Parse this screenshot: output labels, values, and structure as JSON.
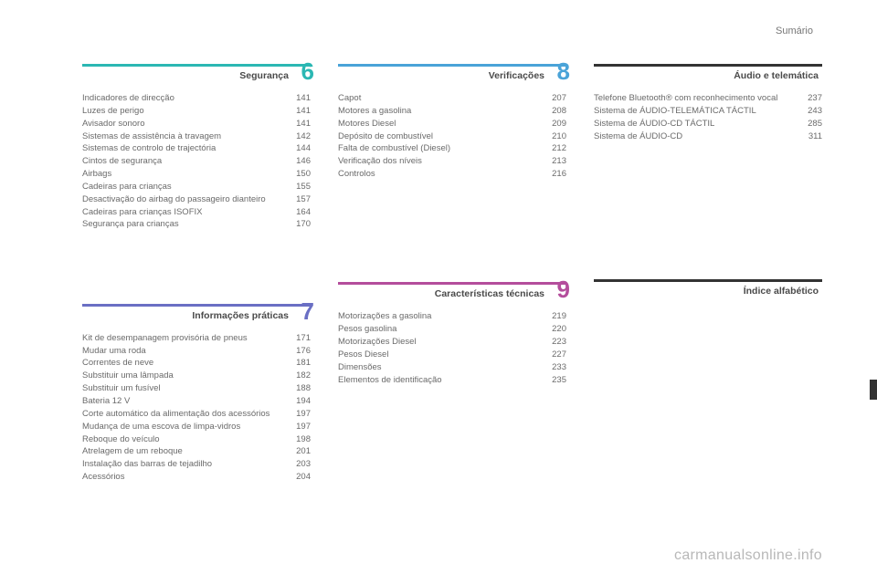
{
  "header": {
    "label": "Sumário"
  },
  "watermark": "carmanualsonline.info",
  "left": {
    "sec6": {
      "num": "6",
      "title": "Segurança",
      "border_color": "#2bb7b3",
      "num_color": "#2bb7b3",
      "items": [
        {
          "label": "Indicadores de direcção",
          "page": "141"
        },
        {
          "label": "Luzes de perigo",
          "page": "141"
        },
        {
          "label": "Avisador sonoro",
          "page": "141"
        },
        {
          "label": "Sistemas de assistência à travagem",
          "page": "142"
        },
        {
          "label": "Sistemas de controlo de trajectória",
          "page": "144"
        },
        {
          "label": "Cintos de segurança",
          "page": "146"
        },
        {
          "label": "Airbags",
          "page": "150"
        },
        {
          "label": "Cadeiras para crianças",
          "page": "155"
        },
        {
          "label": "Desactivação do airbag do passageiro dianteiro",
          "page": "157"
        },
        {
          "label": "Cadeiras para crianças ISOFIX",
          "page": "164"
        },
        {
          "label": "Segurança para crianças",
          "page": "170"
        }
      ]
    },
    "sec7": {
      "num": "7",
      "title": "Informações práticas",
      "border_color": "#6a6fc4",
      "num_color": "#6a6fc4",
      "items": [
        {
          "label": "Kit de desempanagem provisória de pneus",
          "page": "171"
        },
        {
          "label": "Mudar uma roda",
          "page": "176"
        },
        {
          "label": "Correntes de neve",
          "page": "181"
        },
        {
          "label": "Substituir uma lâmpada",
          "page": "182"
        },
        {
          "label": "Substituir um fusível",
          "page": "188"
        },
        {
          "label": "Bateria 12 V",
          "page": "194"
        },
        {
          "label": "Corte automático da alimentação dos acessórios",
          "page": "197"
        },
        {
          "label": "Mudança de uma escova de limpa-vidros",
          "page": "197"
        },
        {
          "label": "Reboque do veículo",
          "page": "198"
        },
        {
          "label": "Atrelagem de um reboque",
          "page": "201"
        },
        {
          "label": "Instalação das barras de tejadilho",
          "page": "203"
        },
        {
          "label": "Acessórios",
          "page": "204"
        }
      ]
    }
  },
  "middle": {
    "sec8": {
      "num": "8",
      "title": "Verificações",
      "border_color": "#4aa3d8",
      "num_color": "#4aa3d8",
      "items": [
        {
          "label": "Capot",
          "page": "207"
        },
        {
          "label": "Motores a gasolina",
          "page": "208"
        },
        {
          "label": "Motores Diesel",
          "page": "209"
        },
        {
          "label": "Depósito de combustível",
          "page": "210"
        },
        {
          "label": "Falta de combustível (Diesel)",
          "page": "212"
        },
        {
          "label": "Verificação dos níveis",
          "page": "213"
        },
        {
          "label": "Controlos",
          "page": "216"
        }
      ]
    },
    "sec9": {
      "num": "9",
      "title": "Características técnicas",
      "border_color": "#b44d9c",
      "num_color": "#b44d9c",
      "items": [
        {
          "label": "Motorizações a gasolina",
          "page": "219"
        },
        {
          "label": "Pesos gasolina",
          "page": "220"
        },
        {
          "label": "Motorizações Diesel",
          "page": "223"
        },
        {
          "label": "Pesos Diesel",
          "page": "227"
        },
        {
          "label": "Dimensões",
          "page": "233"
        },
        {
          "label": "Elementos de identificação",
          "page": "235"
        }
      ]
    }
  },
  "right": {
    "audio": {
      "title": "Áudio e telemática",
      "items": [
        {
          "label": "Telefone Bluetooth® com reconhecimento vocal",
          "page": "237"
        },
        {
          "label": "Sistema de ÁUDIO-TELEMÁTICA TÁCTIL",
          "page": "243"
        },
        {
          "label": "Sistema de ÁUDIO-CD TÁCTIL",
          "page": "285"
        },
        {
          "label": "Sistema de ÁUDIO-CD",
          "page": "311"
        }
      ]
    },
    "index": {
      "title": "Índice alfabético"
    }
  }
}
